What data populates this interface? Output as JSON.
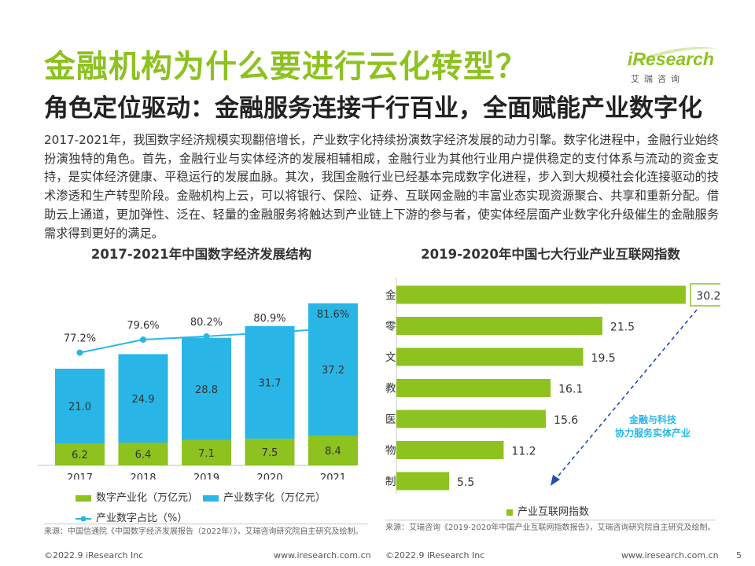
{
  "header": {
    "title": "金融机构为什么要进行云化转型？",
    "subtitle": "角色定位驱动：金融服务连接千行百业，全面赋能产业数字化",
    "logo_word": "iResearch",
    "logo_sub": "艾瑞咨询"
  },
  "body": {
    "paragraph": "2017-2021年，我国数字经济规模实现翻倍增长，产业数字化持续扮演数字经济发展的动力引擎。数字化进程中，金融行业始终扮演独特的角色。首先，金融行业与实体经济的发展相辅相成，金融行业为其他行业用户提供稳定的支付体系与流动的资金支持，是实体经济健康、平稳运行的发展血脉。其次，我国金融行业已经基本完成数字化进程，步入到大规模社会化连接驱动的技术渗透和生产转型阶段。金融机构上云，可以将银行、保险、证券、互联网金融的丰富业态实现资源聚合、共享和重新分配。借助云上通道，更加弹性、泛在、轻量的金融服务将触达到产业链上下游的参与者，使实体经层面产业数字化升级催生的金融服务需求得到更好的满足。"
  },
  "colors": {
    "green": "#8dc21f",
    "blue": "#29b6e6",
    "line": "#29b6e6",
    "dark_blue": "#1f4fb4"
  },
  "chart_data": [
    {
      "type": "bar",
      "stacked": true,
      "title": "2017-2021年中国数字经济发展结构",
      "categories": [
        "2017",
        "2018",
        "2019",
        "2020",
        "2021"
      ],
      "series": [
        {
          "name": "数字产业化（万亿元）",
          "values": [
            6.2,
            6.4,
            7.1,
            7.5,
            8.4
          ],
          "labels": [
            "6.2",
            "6.4",
            "7.1",
            "7.5",
            "8.4"
          ]
        },
        {
          "name": "产业数字化（万亿元）",
          "values": [
            21.0,
            24.9,
            28.8,
            31.7,
            37.2
          ],
          "labels": [
            "21.0",
            "24.9",
            "28.8",
            "31.7",
            "37.2"
          ]
        }
      ],
      "line_series": {
        "name": "产业数字占比（%）",
        "values": [
          77.2,
          79.6,
          80.2,
          80.9,
          81.6
        ],
        "labels": [
          "77.2%",
          "79.6%",
          "80.2%",
          "80.9%",
          "81.6%"
        ]
      },
      "ylim": [
        0,
        46
      ],
      "line_ylim": [
        62,
        92
      ],
      "legend": [
        "数字产业化（万亿元）",
        "产业数字化（万亿元）",
        "产业数字占比（%）"
      ],
      "source": "来源：中国信通院《中国数字经济发展报告（2022年）》，艾瑞咨询研究院自主研究及绘制。"
    },
    {
      "type": "bar",
      "orientation": "horizontal",
      "title": "2019-2020年中国七大行业产业互联网指数",
      "categories": [
        "金融",
        "零售",
        "文娱",
        "教育",
        "医疗",
        "物流",
        "制造"
      ],
      "values": [
        30.2,
        21.5,
        19.5,
        16.1,
        15.6,
        11.2,
        5.5
      ],
      "labels": [
        "30.2",
        "21.5",
        "19.5",
        "16.1",
        "15.6",
        "11.2",
        "5.5"
      ],
      "xlim": [
        0,
        33
      ],
      "highlight": "金融",
      "annotation": [
        "金融与科技",
        "协力服务实体产业"
      ],
      "legend": [
        "产业互联网指数"
      ],
      "source": "来源：艾瑞咨询《2019-2020年中国产业互联网指数报告》，艾瑞咨询研究院自主研究及绘制。"
    }
  ],
  "footer": {
    "left_copyright": "©2022.9 iResearch Inc",
    "left_url": "www.iresearch.com.cn",
    "right_copyright": "©2022.9 iResearch Inc",
    "right_url": "www.iresearch.com.cn",
    "page_number": "5"
  }
}
